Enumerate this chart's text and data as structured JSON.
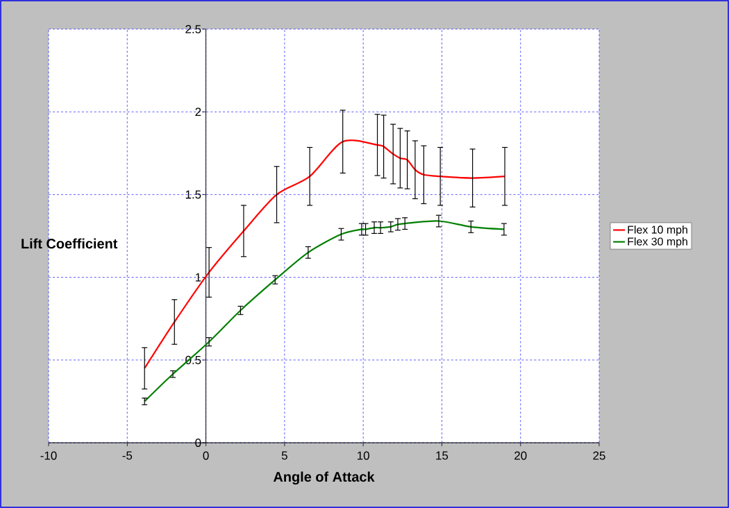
{
  "chart_data": {
    "type": "line",
    "xlabel": "Angle of Attack",
    "ylabel": "Lift Coefficient",
    "xlim": [
      -10,
      25
    ],
    "xticks": [
      -10,
      -5,
      0,
      5,
      10,
      15,
      20,
      25
    ],
    "ylim": [
      0,
      2.5
    ],
    "yticks": [
      0,
      0.5,
      1,
      1.5,
      2,
      2.5
    ],
    "grid": true,
    "legend": "right",
    "marker": "none",
    "line_style": "solid",
    "series": [
      {
        "name": "Flex 10 mph",
        "color": "#ff0000",
        "x": [
          -3.9,
          -2.0,
          0.2,
          2.4,
          4.5,
          6.6,
          8.7,
          10.9,
          11.3,
          11.9,
          12.35,
          12.8,
          13.3,
          13.85,
          14.9,
          16.95,
          19.0
        ],
        "values": [
          0.45,
          0.73,
          1.03,
          1.28,
          1.5,
          1.61,
          1.82,
          1.8,
          1.79,
          1.745,
          1.72,
          1.71,
          1.65,
          1.62,
          1.61,
          1.6,
          1.61
        ],
        "errors": [
          0.125,
          0.135,
          0.15,
          0.155,
          0.17,
          0.175,
          0.19,
          0.185,
          0.19,
          0.18,
          0.18,
          0.175,
          0.175,
          0.175,
          0.175,
          0.175,
          0.175
        ]
      },
      {
        "name": "Flex 30 mph",
        "color": "#008000",
        "x": [
          -3.9,
          -2.1,
          0.2,
          2.2,
          4.4,
          6.5,
          8.6,
          9.9,
          10.15,
          10.7,
          11.1,
          11.75,
          12.2,
          12.65,
          14.8,
          16.85,
          18.95
        ],
        "values": [
          0.25,
          0.415,
          0.61,
          0.8,
          0.985,
          1.15,
          1.26,
          1.29,
          1.29,
          1.3,
          1.3,
          1.305,
          1.32,
          1.325,
          1.34,
          1.305,
          1.29
        ],
        "errors": [
          0.02,
          0.02,
          0.025,
          0.025,
          0.025,
          0.035,
          0.035,
          0.035,
          0.035,
          0.035,
          0.035,
          0.03,
          0.035,
          0.035,
          0.035,
          0.035,
          0.035
        ]
      }
    ]
  }
}
